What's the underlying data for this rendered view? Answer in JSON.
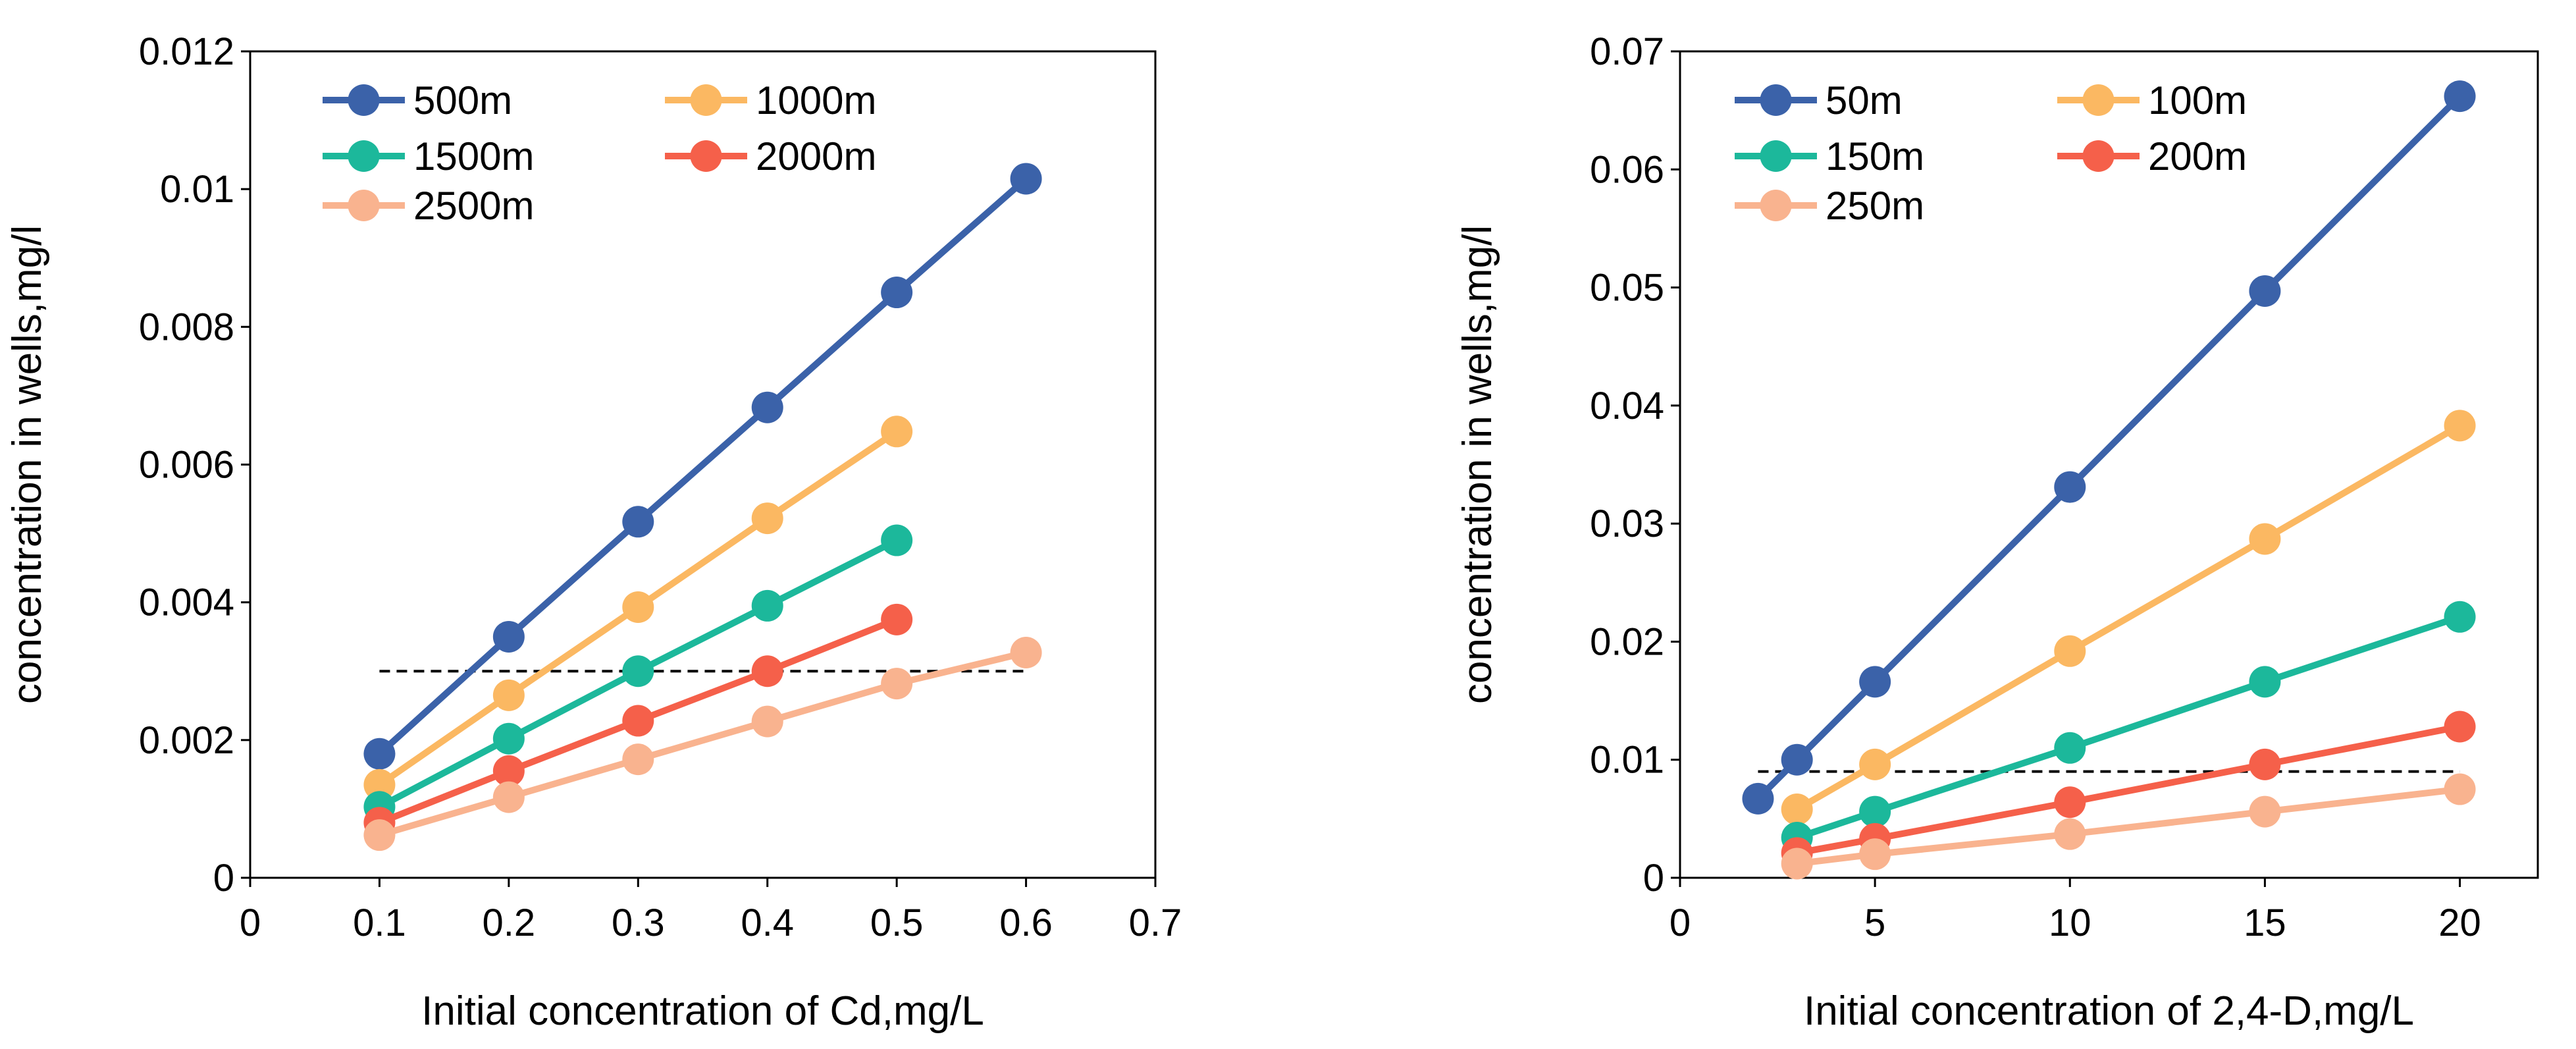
{
  "chart_data": [
    {
      "type": "line",
      "xlabel": "Initial concentration of Cd,mg/L",
      "ylabel": "concentration in wells,mg/l",
      "xlim": [
        0,
        0.7
      ],
      "ylim": [
        0,
        0.012
      ],
      "xticks": [
        0,
        0.1,
        0.2,
        0.3,
        0.4,
        0.5,
        0.6,
        0.7
      ],
      "yticks": [
        0,
        0.002,
        0.004,
        0.006,
        0.008,
        0.01,
        0.012
      ],
      "xtick_labels": [
        "0",
        "0.1",
        "0.2",
        "0.3",
        "0.4",
        "0.5",
        "0.6",
        "0.7"
      ],
      "ytick_labels": [
        "0",
        "0.002",
        "0.004",
        "0.006",
        "0.008",
        "0.01",
        "0.012"
      ],
      "legend_position": "top-left",
      "threshold": {
        "value": 0.003,
        "x_range": [
          0.1,
          0.6
        ],
        "style": "dashed",
        "color": "#000000"
      },
      "series": [
        {
          "name": "500m",
          "color": "#3b62a9",
          "x": [
            0.1,
            0.2,
            0.3,
            0.4,
            0.5,
            0.6
          ],
          "values": [
            0.0018,
            0.0035,
            0.00517,
            0.00683,
            0.0085,
            0.01015
          ]
        },
        {
          "name": "1000m",
          "color": "#fbb862",
          "x": [
            0.1,
            0.2,
            0.3,
            0.4,
            0.5
          ],
          "values": [
            0.00135,
            0.00265,
            0.00393,
            0.00522,
            0.00648
          ]
        },
        {
          "name": "1500m",
          "color": "#1cb89b",
          "x": [
            0.1,
            0.2,
            0.3,
            0.4,
            0.5
          ],
          "values": [
            0.00103,
            0.00202,
            0.003,
            0.00395,
            0.0049
          ]
        },
        {
          "name": "2000m",
          "color": "#f5604a",
          "x": [
            0.1,
            0.2,
            0.3,
            0.4,
            0.5
          ],
          "values": [
            0.0008,
            0.00155,
            0.00228,
            0.003,
            0.00375
          ]
        },
        {
          "name": "2500m",
          "color": "#f9b38f",
          "x": [
            0.1,
            0.2,
            0.3,
            0.4,
            0.5,
            0.6
          ],
          "values": [
            0.00062,
            0.00117,
            0.00172,
            0.00227,
            0.00282,
            0.00327
          ]
        }
      ]
    },
    {
      "type": "line",
      "xlabel": "Initial concentration of 2,4-D,mg/L",
      "ylabel": "concentration in wells,mg/l",
      "xlim": [
        0,
        22
      ],
      "ylim": [
        0,
        0.07
      ],
      "xticks": [
        0,
        5,
        10,
        15,
        20
      ],
      "yticks": [
        0,
        0.01,
        0.02,
        0.03,
        0.04,
        0.05,
        0.06,
        0.07
      ],
      "xtick_labels": [
        "0",
        "5",
        "10",
        "15",
        "20"
      ],
      "ytick_labels": [
        "0",
        "0.01",
        "0.02",
        "0.03",
        "0.04",
        "0.05",
        "0.06",
        "0.07"
      ],
      "legend_position": "top-left",
      "threshold": {
        "value": 0.009,
        "x_range": [
          2,
          20
        ],
        "style": "dashed",
        "color": "#000000"
      },
      "series": [
        {
          "name": "50m",
          "color": "#3b62a9",
          "x": [
            2,
            3,
            5,
            10,
            15,
            20
          ],
          "values": [
            0.0067,
            0.01,
            0.0166,
            0.0331,
            0.0497,
            0.0662
          ]
        },
        {
          "name": "100m",
          "color": "#fbb862",
          "x": [
            3,
            5,
            10,
            15,
            20
          ],
          "values": [
            0.0058,
            0.0096,
            0.0192,
            0.0287,
            0.0383
          ]
        },
        {
          "name": "150m",
          "color": "#1cb89b",
          "x": [
            3,
            5,
            10,
            15,
            20
          ],
          "values": [
            0.0034,
            0.0056,
            0.011,
            0.0166,
            0.0221
          ]
        },
        {
          "name": "200m",
          "color": "#f5604a",
          "x": [
            3,
            5,
            10,
            15,
            20
          ],
          "values": [
            0.0021,
            0.0033,
            0.0064,
            0.0096,
            0.0128
          ]
        },
        {
          "name": "250m",
          "color": "#f9b38f",
          "x": [
            3,
            5,
            10,
            15,
            20
          ],
          "values": [
            0.0012,
            0.002,
            0.0037,
            0.0056,
            0.0075
          ]
        }
      ]
    }
  ]
}
